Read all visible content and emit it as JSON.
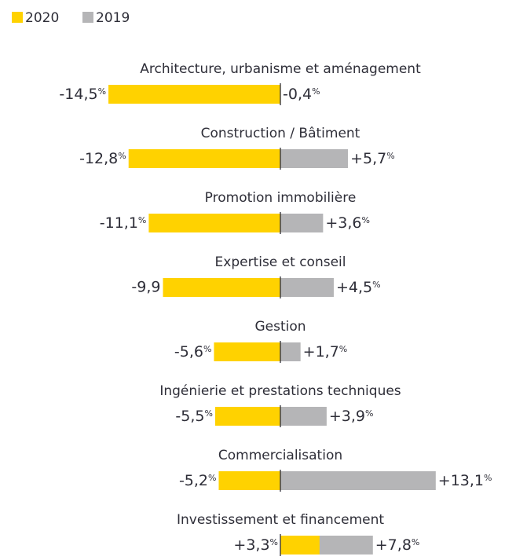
{
  "chart_data": {
    "type": "diverging-bar",
    "categories": [
      "Architecture, urbanisme et aménagement",
      "Construction / Bâtiment",
      "Promotion immobilière",
      "Expertise et conseil",
      "Gestion",
      "Ingénierie et prestations techniques",
      "Commercialisation",
      "Investissement et financement"
    ],
    "series": [
      {
        "name": "2020",
        "color": "#ffd200",
        "values": [
          -14.5,
          -12.8,
          -11.1,
          -9.9,
          -5.6,
          -5.5,
          -5.2,
          3.3
        ],
        "value_labels": [
          "-14,5%",
          "-12,8%",
          "-11,1%",
          "-9,9",
          "-5,6%",
          "-5,5%",
          "-5,2%",
          "+3,3%"
        ]
      },
      {
        "name": "2019",
        "color": "#b5b5b7",
        "values": [
          -0.4,
          5.7,
          3.6,
          4.5,
          1.7,
          3.9,
          13.1,
          7.8
        ],
        "value_labels": [
          "-0,4%",
          "+5,7%",
          "+3,6%",
          "+4,5%",
          "+1,7%",
          "+3,9%",
          "+13,1%",
          "+7,8%"
        ]
      }
    ]
  }
}
